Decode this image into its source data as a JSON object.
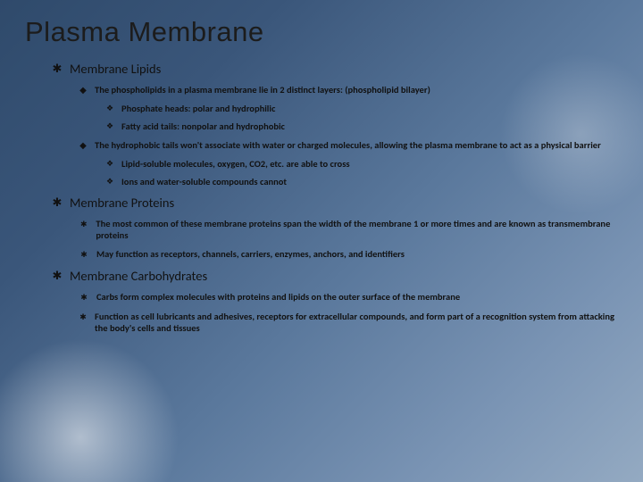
{
  "title": "Plasma Membrane",
  "sections": [
    {
      "heading": "Membrane Lipids",
      "items": [
        {
          "text": "The phospholipids in a plasma membrane lie in 2 distinct layers: (phospholipid bilayer)",
          "subs": [
            {
              "text": "Phosphate heads: polar and hydrophilic"
            },
            {
              "text": "Fatty acid tails: nonpolar and hydrophobic"
            }
          ]
        },
        {
          "text": "The hydrophobic tails won't associate with water or charged molecules, allowing the plasma membrane to act as a physical barrier",
          "subs": [
            {
              "text": "Lipid-soluble molecules, oxygen, CO2, etc. are able to cross"
            },
            {
              "text": "Ions and water-soluble compounds cannot"
            }
          ]
        }
      ]
    },
    {
      "heading": "Membrane Proteins",
      "items": [
        {
          "text": "The most common of these membrane proteins span the width of the membrane 1 or more times and are known as transmembrane proteins",
          "subs": []
        },
        {
          "text": "May function as receptors, channels, carriers, enzymes, anchors, and identifiers",
          "subs": []
        }
      ]
    },
    {
      "heading": "Membrane Carbohydrates",
      "items": [
        {
          "text": "Carbs form complex molecules  with proteins and lipids on the outer surface of the membrane",
          "subs": []
        },
        {
          "text": "Function as cell lubricants and adhesives, receptors for extracellular compounds, and form part of a recognition system  from attacking the body's cells and tissues",
          "subs": []
        }
      ]
    }
  ]
}
